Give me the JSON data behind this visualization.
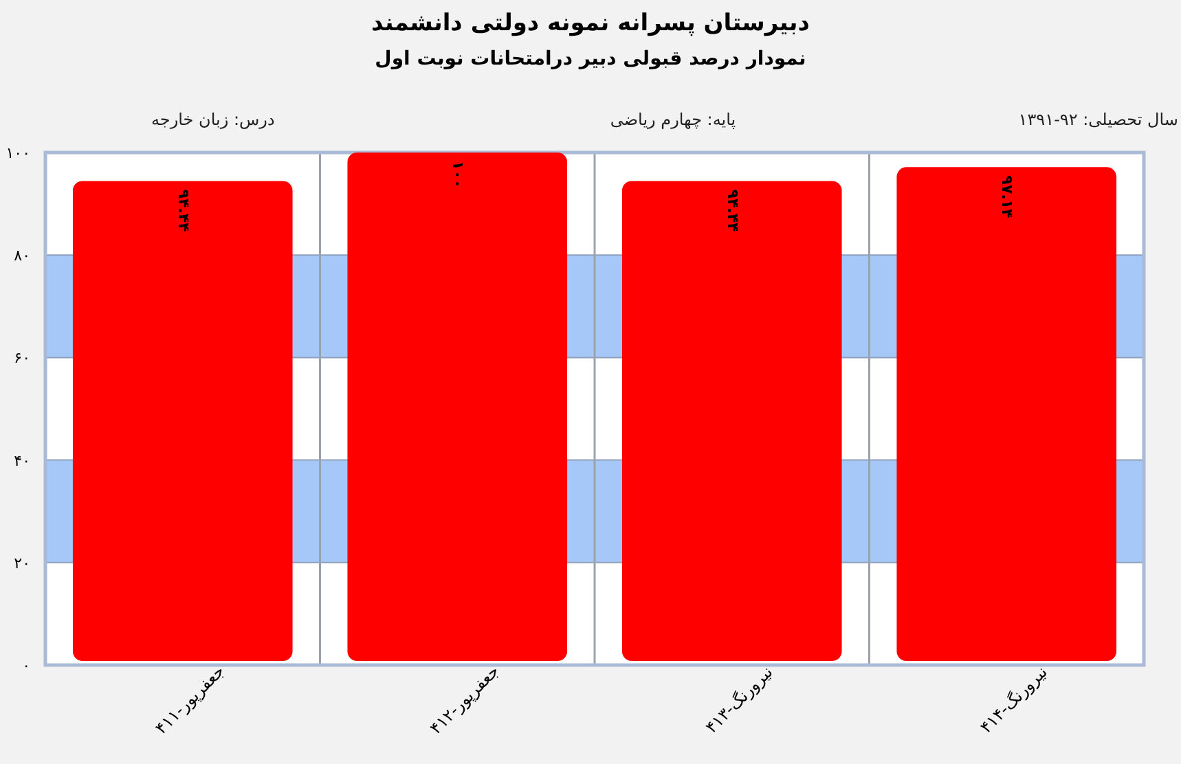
{
  "chart_data": {
    "type": "bar",
    "title": "دبیرستان پسرانه نمونه دولتی دانشمند",
    "subtitle": "نمودار درصد قبولی دبیر درامتحانات نوبت اول",
    "annotations": [
      "سال تحصیلی: ۹۲-۱۳۹۱",
      "پایه: چهارم ریاضی",
      "درس: زبان خارجه"
    ],
    "categories": [
      "جعفرپور-۴۱۱",
      "جعفرپور-۴۱۲",
      "نیرورنگ-۴۱۳",
      "نیرورنگ-۴۱۴"
    ],
    "values": [
      94.44,
      100,
      94.44,
      97.14
    ],
    "value_labels": [
      "۹۴.۴۴",
      "۱۰۰",
      "۹۴.۴۴",
      "۹۷.۱۴"
    ],
    "color": "#ff0000",
    "ylim": [
      0,
      100
    ],
    "yticks": [
      {
        "value": 0,
        "label": "۰"
      },
      {
        "value": 20,
        "label": "۲۰"
      },
      {
        "value": 40,
        "label": "۴۰"
      },
      {
        "value": 60,
        "label": "۶۰"
      },
      {
        "value": 80,
        "label": "۸۰"
      },
      {
        "value": 100,
        "label": "۱۰۰"
      }
    ],
    "bands": [
      {
        "axis": "y",
        "from": 20,
        "to": 40,
        "color": "#a6c8f8"
      },
      {
        "axis": "y",
        "from": 60,
        "to": 80,
        "color": "#a6c8f8"
      }
    ],
    "grid": true
  }
}
